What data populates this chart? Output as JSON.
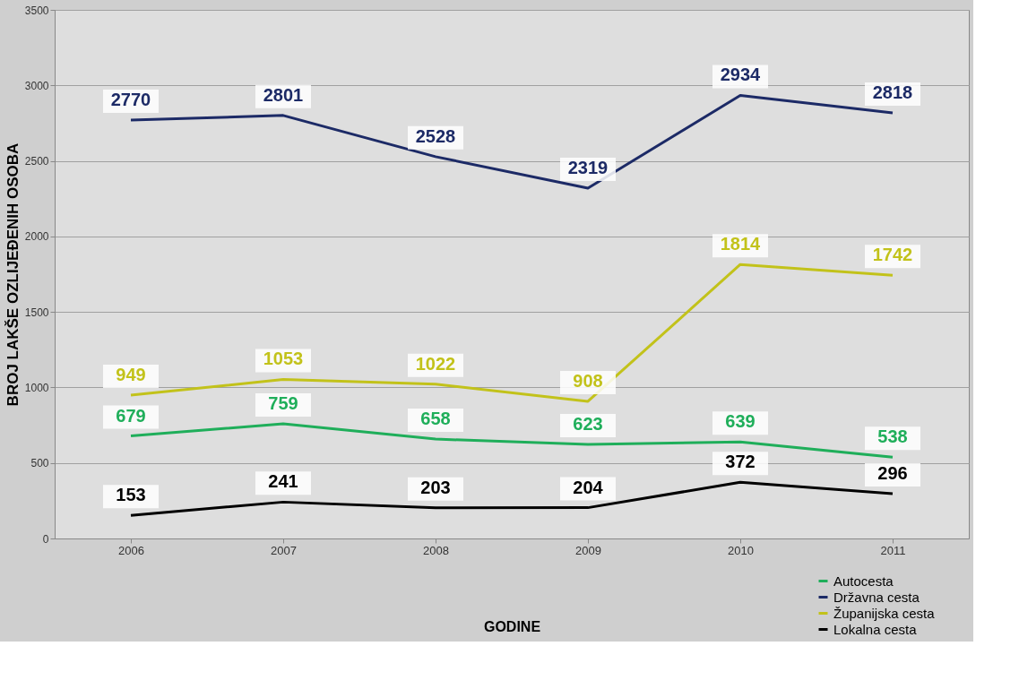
{
  "chart_data": {
    "type": "line",
    "xlabel": "GODINE",
    "ylabel": "BROJ LAKŠE OZLIJEĐENIH OSOBA",
    "categories": [
      "2006",
      "2007",
      "2008",
      "2009",
      "2010",
      "2011"
    ],
    "series": [
      {
        "name": "Autocesta",
        "color": "#1fae5a",
        "values": [
          679,
          759,
          658,
          623,
          639,
          538
        ]
      },
      {
        "name": "Državna cesta",
        "color": "#1c2a66",
        "values": [
          2770,
          2801,
          2528,
          2319,
          2934,
          2818
        ]
      },
      {
        "name": "Županijska cesta",
        "color": "#c2c21a",
        "values": [
          949,
          1053,
          1022,
          908,
          1814,
          1742
        ]
      },
      {
        "name": "Lokalna cesta",
        "color": "#000000",
        "values": [
          153,
          241,
          203,
          204,
          372,
          296
        ]
      }
    ],
    "ylim": [
      0,
      3500
    ],
    "yticks": [
      0,
      500,
      1000,
      1500,
      2000,
      2500,
      3000,
      3500
    ],
    "grid": "y",
    "legend": "bottom right",
    "data_labels": true,
    "marker": "none",
    "line_style": "solid"
  }
}
